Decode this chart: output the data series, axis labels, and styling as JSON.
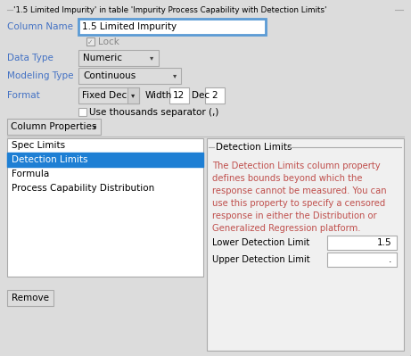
{
  "title": "'1.5 Limited Impurity' in table 'Impurity Process Capability with Detection Limits'",
  "bg_color": "#dcdcdc",
  "white": "#ffffff",
  "blue_highlight": "#1e7fd4",
  "col_name_label": "Column Name",
  "col_name_value": "1.5 Limited Impurity",
  "lock_label": "Lock",
  "data_type_label": "Data Type",
  "data_type_value": "Numeric",
  "modeling_type_label": "Modeling Type",
  "modeling_type_value": "Continuous",
  "format_label": "Format",
  "format_value": "Fixed Dec",
  "width_label": "Width",
  "width_value": "12",
  "dec_label": "Dec",
  "dec_value": "2",
  "thousands_label": "Use thousands separator (,)",
  "col_props_label": "Column Properties",
  "list_items": [
    "Spec Limits",
    "Detection Limits",
    "Formula",
    "Process Capability Distribution"
  ],
  "selected_item": "Detection Limits",
  "remove_label": "Remove",
  "det_limits_title": "Detection Limits",
  "det_limits_lines": [
    "The Detection Limits column property",
    "defines bounds beyond which the",
    "response cannot be measured. You can",
    "use this property to specify a censored",
    "response in either the Distribution or",
    "Generalized Regression platform."
  ],
  "lower_limit_label": "Lower Detection Limit",
  "lower_limit_value": "1.5",
  "upper_limit_label": "Upper Detection Limit",
  "upper_limit_value": ".",
  "border_color": "#aaaaaa",
  "text_color": "#000000",
  "label_color_blue": "#4472c4",
  "input_border_color": "#5b9bd5",
  "checkbox_color": "#888888",
  "det_text_color": "#c0504d"
}
